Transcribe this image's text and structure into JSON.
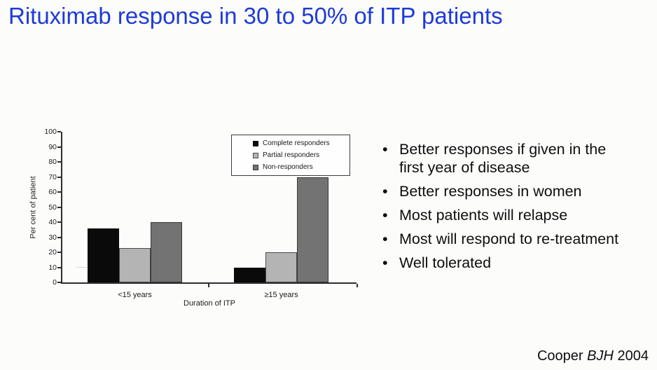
{
  "slide": {
    "title": "Rituximab response in 30 to 50% of ITP patients",
    "colors": {
      "title": "#1e3ad8",
      "background": "#fcfdfb",
      "axis": "#2e2e2e"
    }
  },
  "chart_data": {
    "type": "bar",
    "categories": [
      "<15 years",
      "≥15 years"
    ],
    "series": [
      {
        "name": "Complete responders",
        "values": [
          36,
          10
        ],
        "color": "#0a0a0a",
        "border": "#0a0a0a"
      },
      {
        "name": "Partial responders",
        "values": [
          23,
          20
        ],
        "color": "#b4b4b4",
        "border": "#4a4a4a"
      },
      {
        "name": "Non-responders",
        "values": [
          40,
          70
        ],
        "color": "#737373",
        "border": "#383838"
      }
    ],
    "xlabel": "Duration of ITP",
    "ylabel": "Per cent of patient",
    "ylim": [
      0,
      100
    ],
    "ytick_step": 10,
    "grid": false,
    "legend_position": "top-right-inside"
  },
  "bullets": [
    "Better responses if given in the\nfirst year of disease",
    "Better responses in women",
    "Most patients will relapse",
    "Most will respond to re-treatment",
    "Well tolerated"
  ],
  "citation": {
    "author": "Cooper",
    "journal": "BJH",
    "year": "2004"
  }
}
